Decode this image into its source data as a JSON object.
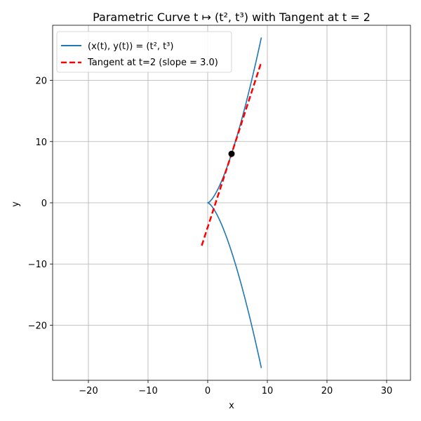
{
  "chart_data": {
    "type": "line",
    "title": "Parametric Curve t ↦ (t², t³) with Tangent at t = 2",
    "xlabel": "x",
    "ylabel": "y",
    "xlim": [
      -26,
      34
    ],
    "ylim": [
      -29,
      29
    ],
    "x_ticks": [
      -20,
      -10,
      0,
      10,
      20,
      30
    ],
    "y_ticks": [
      -20,
      -10,
      0,
      10,
      20
    ],
    "grid": true,
    "legend_position": "top-left",
    "parameter_range": [
      -3,
      3
    ],
    "series": [
      {
        "name": "(x(t), y(t)) = (t², t³)",
        "style": "solid",
        "color": "#1f77b4",
        "points": [
          [
            9,
            -27
          ],
          [
            6.25,
            -15.625
          ],
          [
            4,
            -8
          ],
          [
            2.25,
            -3.375
          ],
          [
            1,
            -1
          ],
          [
            0.25,
            -0.125
          ],
          [
            0,
            0
          ],
          [
            0.25,
            0.125
          ],
          [
            1,
            1
          ],
          [
            2.25,
            3.375
          ],
          [
            4,
            8
          ],
          [
            6.25,
            15.625
          ],
          [
            9,
            27
          ]
        ]
      },
      {
        "name": "Tangent at t=2 (slope = 3.0)",
        "style": "dashed",
        "color": "#ff0000",
        "points": [
          [
            -1,
            -7
          ],
          [
            9,
            23
          ]
        ]
      }
    ],
    "marker": {
      "x": 4,
      "y": 8,
      "color": "#000000"
    }
  }
}
